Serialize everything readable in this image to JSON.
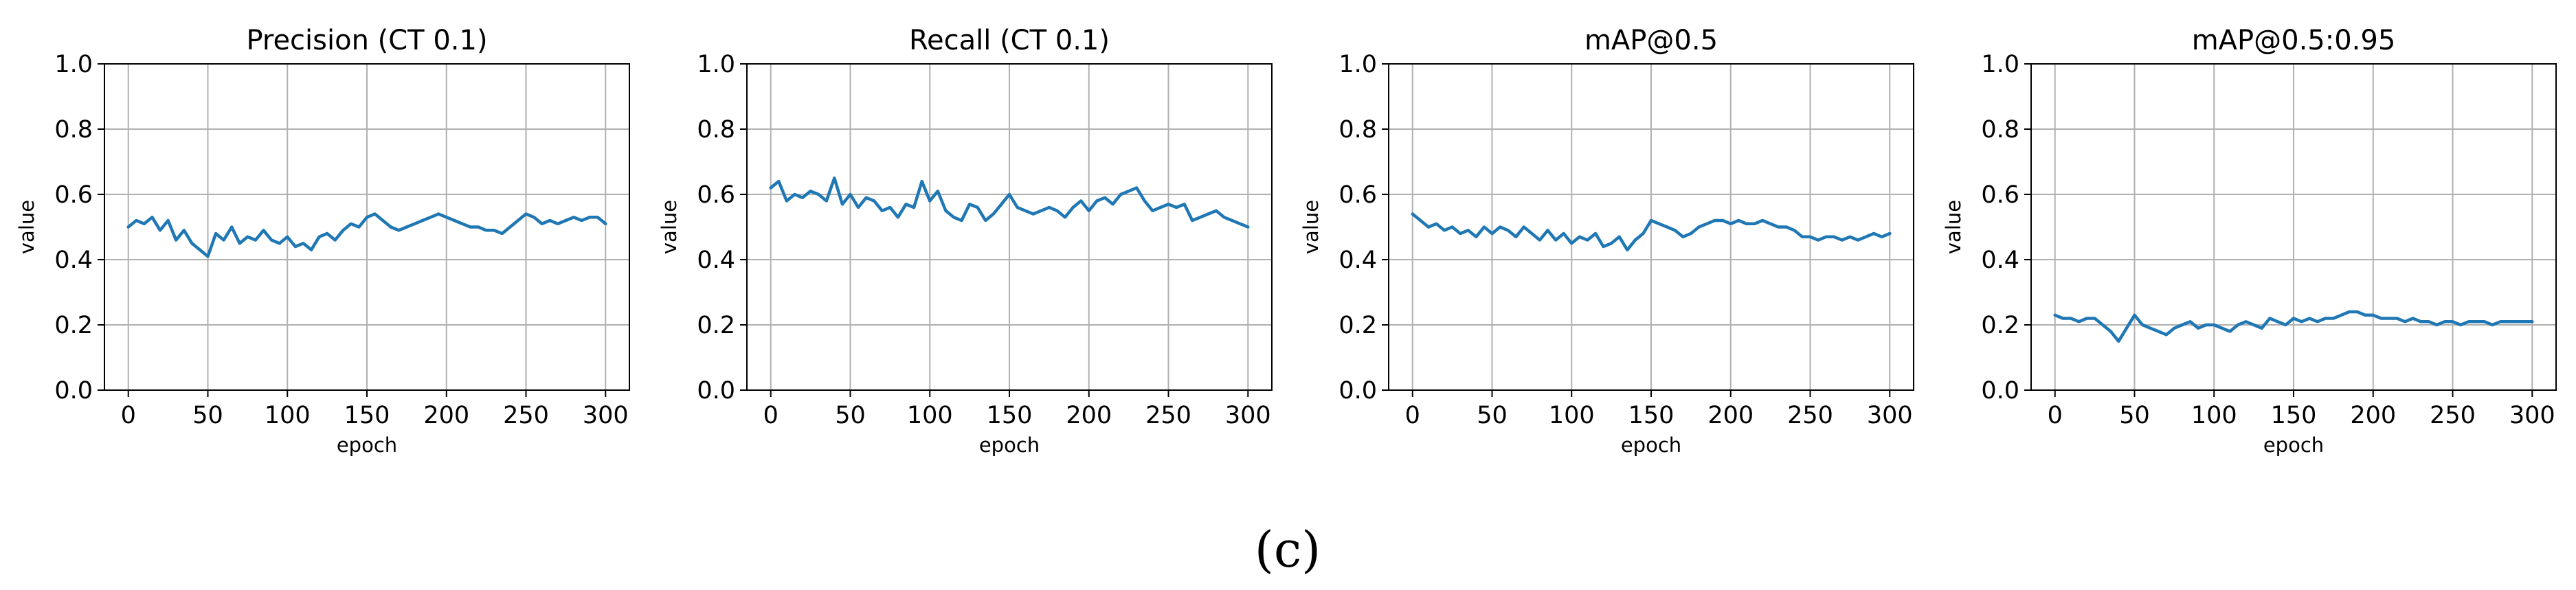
{
  "figure": {
    "caption": "(c)"
  },
  "chart_data": [
    {
      "type": "line",
      "title": "Precision (CT 0.1)",
      "xlabel": "epoch",
      "ylabel": "value",
      "xlim": [
        -15,
        315
      ],
      "ylim": [
        0.0,
        1.0
      ],
      "xticks": [
        0,
        50,
        100,
        150,
        200,
        250,
        300
      ],
      "yticks": [
        0.0,
        0.2,
        0.4,
        0.6,
        0.8,
        1.0
      ],
      "xtick_labels": [
        "0",
        "50",
        "100",
        "150",
        "200",
        "250",
        "300"
      ],
      "ytick_labels": [
        "0.0",
        "0.2",
        "0.4",
        "0.6",
        "0.8",
        "1.0"
      ],
      "grid": true,
      "series": [
        {
          "name": "Precision (CT 0.1)",
          "color": "#1f77b4",
          "x_start": 0,
          "x_step": 5,
          "values": [
            0.5,
            0.52,
            0.51,
            0.53,
            0.49,
            0.52,
            0.46,
            0.49,
            0.45,
            0.43,
            0.41,
            0.48,
            0.46,
            0.5,
            0.45,
            0.47,
            0.46,
            0.49,
            0.46,
            0.45,
            0.47,
            0.44,
            0.45,
            0.43,
            0.47,
            0.48,
            0.46,
            0.49,
            0.51,
            0.5,
            0.53,
            0.54,
            0.52,
            0.5,
            0.49,
            0.5,
            0.51,
            0.52,
            0.53,
            0.54,
            0.53,
            0.52,
            0.51,
            0.5,
            0.5,
            0.49,
            0.49,
            0.48,
            0.5,
            0.52,
            0.54,
            0.53,
            0.51,
            0.52,
            0.51,
            0.52,
            0.53,
            0.52,
            0.53,
            0.53,
            0.51
          ]
        }
      ]
    },
    {
      "type": "line",
      "title": "Recall (CT 0.1)",
      "xlabel": "epoch",
      "ylabel": "value",
      "xlim": [
        -15,
        315
      ],
      "ylim": [
        0.0,
        1.0
      ],
      "xticks": [
        0,
        50,
        100,
        150,
        200,
        250,
        300
      ],
      "yticks": [
        0.0,
        0.2,
        0.4,
        0.6,
        0.8,
        1.0
      ],
      "xtick_labels": [
        "0",
        "50",
        "100",
        "150",
        "200",
        "250",
        "300"
      ],
      "ytick_labels": [
        "0.0",
        "0.2",
        "0.4",
        "0.6",
        "0.8",
        "1.0"
      ],
      "grid": true,
      "series": [
        {
          "name": "Recall (CT 0.1)",
          "color": "#1f77b4",
          "x_start": 0,
          "x_step": 5,
          "values": [
            0.62,
            0.64,
            0.58,
            0.6,
            0.59,
            0.61,
            0.6,
            0.58,
            0.65,
            0.57,
            0.6,
            0.56,
            0.59,
            0.58,
            0.55,
            0.56,
            0.53,
            0.57,
            0.56,
            0.64,
            0.58,
            0.61,
            0.55,
            0.53,
            0.52,
            0.57,
            0.56,
            0.52,
            0.54,
            0.57,
            0.6,
            0.56,
            0.55,
            0.54,
            0.55,
            0.56,
            0.55,
            0.53,
            0.56,
            0.58,
            0.55,
            0.58,
            0.59,
            0.57,
            0.6,
            0.61,
            0.62,
            0.58,
            0.55,
            0.56,
            0.57,
            0.56,
            0.57,
            0.52,
            0.53,
            0.54,
            0.55,
            0.53,
            0.52,
            0.51,
            0.5
          ]
        }
      ]
    },
    {
      "type": "line",
      "title": "mAP@0.5",
      "xlabel": "epoch",
      "ylabel": "value",
      "xlim": [
        -15,
        315
      ],
      "ylim": [
        0.0,
        1.0
      ],
      "xticks": [
        0,
        50,
        100,
        150,
        200,
        250,
        300
      ],
      "yticks": [
        0.0,
        0.2,
        0.4,
        0.6,
        0.8,
        1.0
      ],
      "xtick_labels": [
        "0",
        "50",
        "100",
        "150",
        "200",
        "250",
        "300"
      ],
      "ytick_labels": [
        "0.0",
        "0.2",
        "0.4",
        "0.6",
        "0.8",
        "1.0"
      ],
      "grid": true,
      "series": [
        {
          "name": "mAP@0.5",
          "color": "#1f77b4",
          "x_start": 0,
          "x_step": 5,
          "values": [
            0.54,
            0.52,
            0.5,
            0.51,
            0.49,
            0.5,
            0.48,
            0.49,
            0.47,
            0.5,
            0.48,
            0.5,
            0.49,
            0.47,
            0.5,
            0.48,
            0.46,
            0.49,
            0.46,
            0.48,
            0.45,
            0.47,
            0.46,
            0.48,
            0.44,
            0.45,
            0.47,
            0.43,
            0.46,
            0.48,
            0.52,
            0.51,
            0.5,
            0.49,
            0.47,
            0.48,
            0.5,
            0.51,
            0.52,
            0.52,
            0.51,
            0.52,
            0.51,
            0.51,
            0.52,
            0.51,
            0.5,
            0.5,
            0.49,
            0.47,
            0.47,
            0.46,
            0.47,
            0.47,
            0.46,
            0.47,
            0.46,
            0.47,
            0.48,
            0.47,
            0.48
          ]
        }
      ]
    },
    {
      "type": "line",
      "title": "mAP@0.5:0.95",
      "xlabel": "epoch",
      "ylabel": "value",
      "xlim": [
        -15,
        315
      ],
      "ylim": [
        0.0,
        1.0
      ],
      "xticks": [
        0,
        50,
        100,
        150,
        200,
        250,
        300
      ],
      "yticks": [
        0.0,
        0.2,
        0.4,
        0.6,
        0.8,
        1.0
      ],
      "xtick_labels": [
        "0",
        "50",
        "100",
        "150",
        "200",
        "250",
        "300"
      ],
      "ytick_labels": [
        "0.0",
        "0.2",
        "0.4",
        "0.6",
        "0.8",
        "1.0"
      ],
      "grid": true,
      "series": [
        {
          "name": "mAP@0.5:0.95",
          "color": "#1f77b4",
          "x_start": 0,
          "x_step": 5,
          "values": [
            0.23,
            0.22,
            0.22,
            0.21,
            0.22,
            0.22,
            0.2,
            0.18,
            0.15,
            0.19,
            0.23,
            0.2,
            0.19,
            0.18,
            0.17,
            0.19,
            0.2,
            0.21,
            0.19,
            0.2,
            0.2,
            0.19,
            0.18,
            0.2,
            0.21,
            0.2,
            0.19,
            0.22,
            0.21,
            0.2,
            0.22,
            0.21,
            0.22,
            0.21,
            0.22,
            0.22,
            0.23,
            0.24,
            0.24,
            0.23,
            0.23,
            0.22,
            0.22,
            0.22,
            0.21,
            0.22,
            0.21,
            0.21,
            0.2,
            0.21,
            0.21,
            0.2,
            0.21,
            0.21,
            0.21,
            0.2,
            0.21,
            0.21,
            0.21,
            0.21,
            0.21
          ]
        }
      ]
    }
  ]
}
